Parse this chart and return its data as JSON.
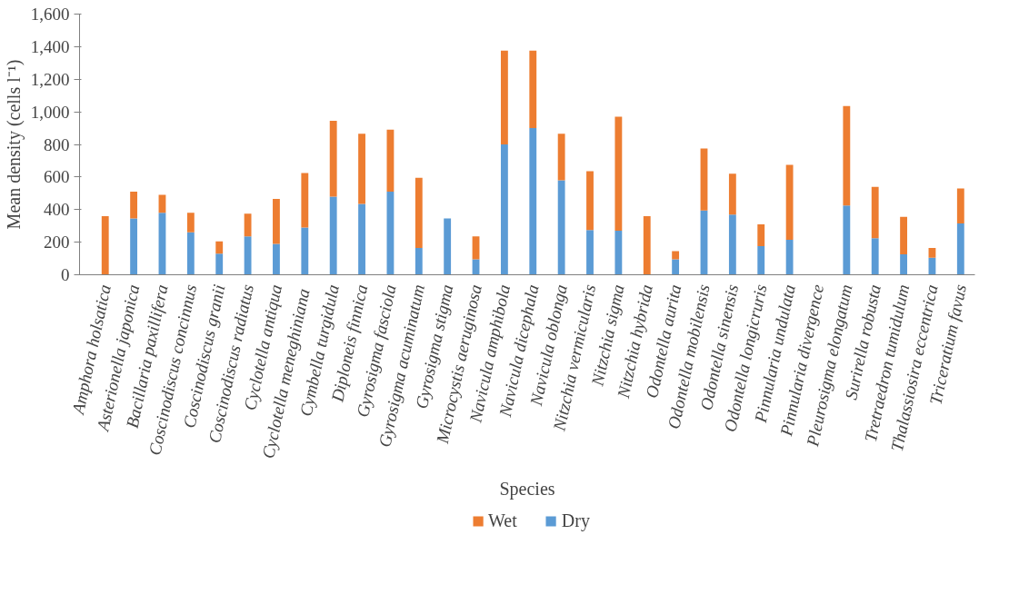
{
  "chart_data": {
    "type": "bar",
    "stacked": true,
    "xlabel": "Species",
    "ylabel": "Mean density (cells l⁻¹)",
    "categories": [
      "Amphora holsatica",
      "Asterionella japonica",
      "Bacillaria paxillifera",
      "Coscinodiscus concinnus",
      "Coscinodiscus granii",
      "Coscinodiscus radiatus",
      "Cyclotella antiqua",
      "Cyclotella  meneghiniana",
      "Cymbella turgidula",
      "Diploneis finnica",
      "Gyrosigma fasciola",
      "Gyrosigma acuminatum",
      "Gyrosigma stigma",
      "Microcystis aeruginosa",
      "Navicula amphibola",
      "Navicula dicephala",
      "Navicula oblonga",
      "Nitzchia vermicularis",
      "Nitzchia sigma",
      "Nitzchia hybrida",
      "Odontella aurita",
      "Odontella mobilensis",
      "Odontella sinensis",
      "Odontella longicruris",
      "Pinnularia undulata",
      "Pinnularia divergence",
      "Pleurosigma elongatum",
      "Surirella robusta",
      "Tretraedron tumidulum",
      "Thalassiosira eccentrica",
      "Triceratium favus"
    ],
    "series": [
      {
        "name": "Dry",
        "color": "#5b9bd5",
        "values": [
          0,
          345,
          380,
          260,
          130,
          235,
          190,
          290,
          480,
          435,
          510,
          165,
          345,
          95,
          800,
          900,
          580,
          275,
          270,
          0,
          95,
          395,
          370,
          175,
          215,
          0,
          425,
          225,
          125,
          105,
          315
        ]
      },
      {
        "name": "Wet",
        "color": "#ed7d31",
        "values": [
          360,
          165,
          110,
          120,
          75,
          140,
          275,
          335,
          465,
          430,
          380,
          430,
          0,
          140,
          575,
          475,
          285,
          360,
          700,
          360,
          50,
          380,
          250,
          135,
          460,
          0,
          610,
          315,
          230,
          60,
          215
        ]
      }
    ],
    "ylim": [
      0,
      1600
    ],
    "yticks": [
      0,
      200,
      400,
      600,
      800,
      {
        "value": 1000,
        "label": "1,000"
      },
      {
        "value": 1200,
        "label": "1,200"
      },
      {
        "value": 1400,
        "label": "1,400"
      },
      {
        "value": 1600,
        "label": "1,600"
      }
    ],
    "grid": false,
    "legend": "bottom"
  }
}
